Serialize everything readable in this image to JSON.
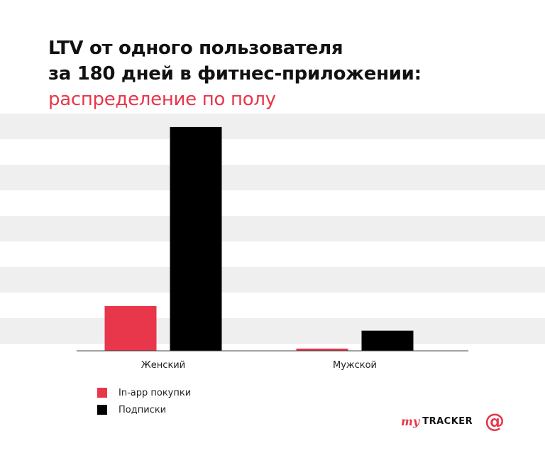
{
  "header": {
    "title_line1": "LTV от одного пользователя",
    "title_line2": "за 180 дней в фитнес-приложении:",
    "subtitle": "распределение по полу"
  },
  "colors": {
    "accent": "#e8364a",
    "dark": "#000000",
    "band": "#efefef"
  },
  "chart_data": {
    "type": "bar",
    "categories": [
      "Женский",
      "Мужской"
    ],
    "series": [
      {
        "name": "In-app покупки",
        "values": [
          20,
          1
        ]
      },
      {
        "name": "Подписки",
        "values": [
          100,
          9
        ]
      }
    ],
    "ylim": [
      0,
      106
    ],
    "grid": "alternating-bands",
    "legend_position": "bottom-left"
  },
  "legend": {
    "items": [
      {
        "label": "In-app покупки",
        "color": "#e8364a"
      },
      {
        "label": "Подписки",
        "color": "#000000"
      }
    ]
  },
  "brand": {
    "my": "my",
    "tracker": "TRACKER",
    "at": "@"
  }
}
